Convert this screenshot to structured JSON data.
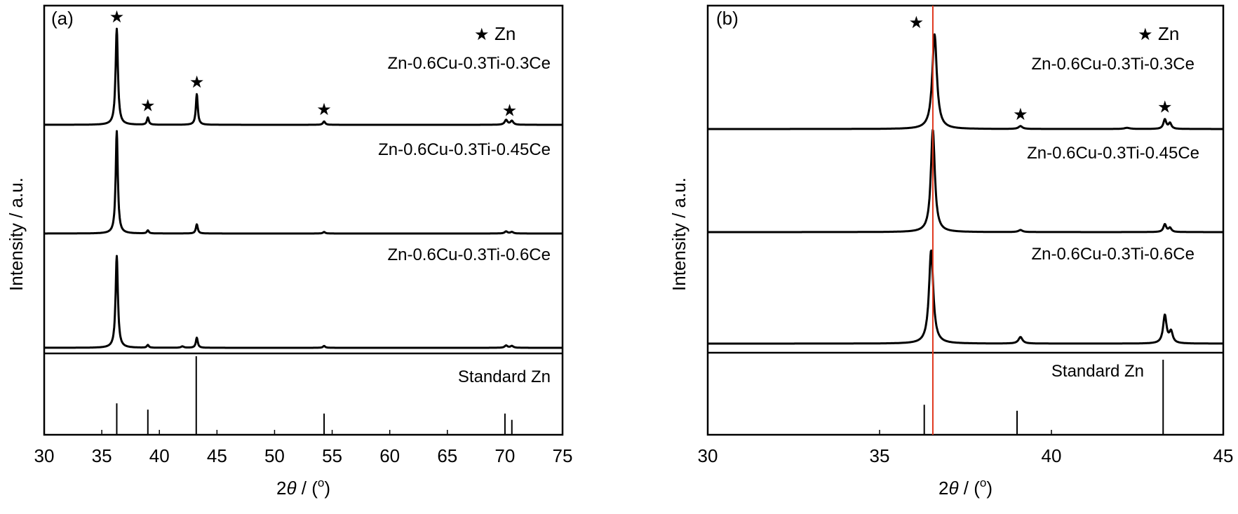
{
  "chart_data": [
    {
      "panel_label": "(a)",
      "type": "line",
      "xlabel_pre": "2",
      "xlabel_theta": "θ",
      "xlabel_post": " / (",
      "xlabel_deg": "o",
      "xlabel_close": ")",
      "ylabel": "Intensity / a.u.",
      "xlim": [
        30,
        75
      ],
      "xticks": [
        "30",
        "35",
        "40",
        "45",
        "50",
        "55",
        "60",
        "65",
        "70",
        "75"
      ],
      "legend": {
        "marker": "★",
        "text": "Zn"
      },
      "series": [
        {
          "name": "Zn-0.6Cu-0.3Ti-0.3Ce",
          "peaks": [
            {
              "x": 36.3,
              "h": 1.0,
              "w": 0.12
            },
            {
              "x": 39.0,
              "h": 0.075,
              "w": 0.1
            },
            {
              "x": 43.25,
              "h": 0.32,
              "w": 0.1
            },
            {
              "x": 54.3,
              "h": 0.035,
              "w": 0.12
            },
            {
              "x": 70.1,
              "h": 0.05,
              "w": 0.15
            },
            {
              "x": 70.6,
              "h": 0.04,
              "w": 0.15
            }
          ],
          "stars": [
            36.3,
            39.0,
            43.25,
            54.3,
            70.4
          ]
        },
        {
          "name": "Zn-0.6Cu-0.3Ti-0.45Ce",
          "peaks": [
            {
              "x": 36.3,
              "h": 1.0,
              "w": 0.11
            },
            {
              "x": 39.0,
              "h": 0.03,
              "w": 0.1
            },
            {
              "x": 43.25,
              "h": 0.09,
              "w": 0.1
            },
            {
              "x": 54.3,
              "h": 0.015,
              "w": 0.12
            },
            {
              "x": 70.1,
              "h": 0.02,
              "w": 0.15
            },
            {
              "x": 70.6,
              "h": 0.015,
              "w": 0.15
            }
          ],
          "stars": []
        },
        {
          "name": "Zn-0.6Cu-0.3Ti-0.6Ce",
          "peaks": [
            {
              "x": 36.3,
              "h": 1.0,
              "w": 0.12
            },
            {
              "x": 39.0,
              "h": 0.03,
              "w": 0.1
            },
            {
              "x": 42.0,
              "h": 0.015,
              "w": 0.15
            },
            {
              "x": 43.25,
              "h": 0.11,
              "w": 0.1
            },
            {
              "x": 54.3,
              "h": 0.02,
              "w": 0.12
            },
            {
              "x": 70.1,
              "h": 0.025,
              "w": 0.15
            },
            {
              "x": 70.6,
              "h": 0.02,
              "w": 0.15
            }
          ],
          "stars": []
        }
      ],
      "standard": {
        "name": "Standard Zn",
        "lines": [
          {
            "x": 36.3,
            "h": 0.4
          },
          {
            "x": 39.0,
            "h": 0.32
          },
          {
            "x": 43.2,
            "h": 1.0
          },
          {
            "x": 54.3,
            "h": 0.27
          },
          {
            "x": 70.0,
            "h": 0.27
          },
          {
            "x": 70.6,
            "h": 0.19
          }
        ]
      }
    },
    {
      "panel_label": "(b)",
      "type": "line",
      "xlabel_pre": "2",
      "xlabel_theta": "θ",
      "xlabel_post": " / (",
      "xlabel_deg": "o",
      "xlabel_close": ")",
      "ylabel": "Intensity / a.u.",
      "xlim": [
        30,
        45
      ],
      "xticks": [
        "30",
        "35",
        "40",
        "45"
      ],
      "legend": {
        "marker": "★",
        "text": "Zn"
      },
      "reference_line_x": 36.55,
      "series": [
        {
          "name": "Zn-0.6Cu-0.3Ti-0.3Ce",
          "peaks": [
            {
              "x": 36.6,
              "h": 1.0,
              "w": 0.08
            },
            {
              "x": 39.1,
              "h": 0.03,
              "w": 0.07
            },
            {
              "x": 42.2,
              "h": 0.012,
              "w": 0.1
            },
            {
              "x": 43.3,
              "h": 0.1,
              "w": 0.05
            },
            {
              "x": 43.45,
              "h": 0.06,
              "w": 0.05
            }
          ],
          "stars": [
            36.6,
            39.1,
            43.3
          ]
        },
        {
          "name": "Zn-0.6Cu-0.3Ti-0.45Ce",
          "peaks": [
            {
              "x": 36.55,
              "h": 1.0,
              "w": 0.07
            },
            {
              "x": 39.1,
              "h": 0.02,
              "w": 0.07
            },
            {
              "x": 43.3,
              "h": 0.075,
              "w": 0.05
            },
            {
              "x": 43.45,
              "h": 0.04,
              "w": 0.05
            }
          ],
          "stars": []
        },
        {
          "name": "Zn-0.6Cu-0.3Ti-0.6Ce",
          "peaks": [
            {
              "x": 36.5,
              "h": 1.0,
              "w": 0.075
            },
            {
              "x": 39.1,
              "h": 0.07,
              "w": 0.07
            },
            {
              "x": 43.3,
              "h": 0.3,
              "w": 0.06
            },
            {
              "x": 43.48,
              "h": 0.12,
              "w": 0.06
            }
          ],
          "stars": []
        }
      ],
      "standard": {
        "name": "Standard Zn",
        "lines": [
          {
            "x": 36.3,
            "h": 0.4
          },
          {
            "x": 39.0,
            "h": 0.32
          },
          {
            "x": 43.25,
            "h": 1.0
          }
        ]
      }
    }
  ]
}
